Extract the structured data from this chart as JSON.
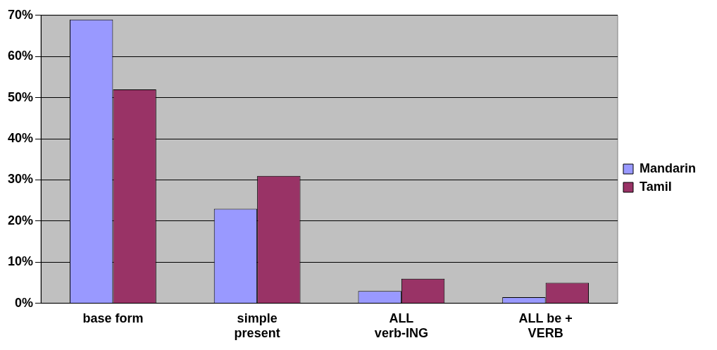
{
  "chart_data": {
    "type": "bar",
    "categories": [
      "base form",
      "simple present",
      "ALL verb-ING",
      "ALL be + VERB"
    ],
    "series": [
      {
        "name": "Mandarin",
        "color": "#9999ff",
        "values": [
          69,
          23,
          3,
          1.5
        ]
      },
      {
        "name": "Tamil",
        "color": "#993366",
        "values": [
          52,
          31,
          6,
          5
        ]
      }
    ],
    "ylim": [
      0,
      70
    ],
    "yticks": [
      {
        "value": 0,
        "label": "0%"
      },
      {
        "value": 10,
        "label": "10%"
      },
      {
        "value": 20,
        "label": "20%"
      },
      {
        "value": 30,
        "label": "30%"
      },
      {
        "value": 40,
        "label": "40%"
      },
      {
        "value": 50,
        "label": "50%"
      },
      {
        "value": 60,
        "label": "60%"
      },
      {
        "value": 70,
        "label": "70%"
      }
    ],
    "grid": "y",
    "legend": "right"
  }
}
